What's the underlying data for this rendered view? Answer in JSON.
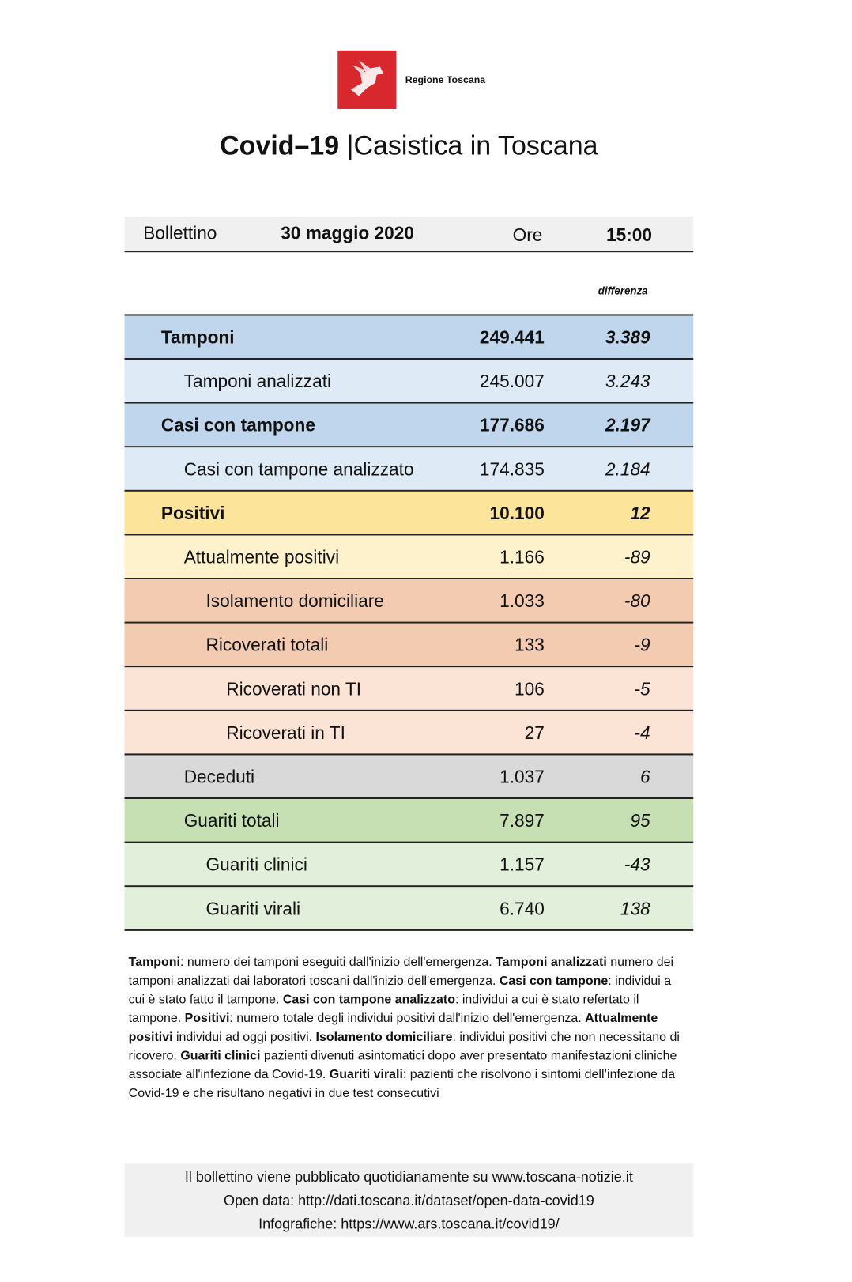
{
  "logo": {
    "text": "Regione Toscana"
  },
  "header": {
    "title_bold": "Covid–19",
    "separator": "|",
    "title": "Casistica in Toscana"
  },
  "bulletin": {
    "label": "Bollettino",
    "date": "30 maggio 2020",
    "time_label": "Ore",
    "time": "15:00"
  },
  "table": {
    "diff_header": "differenza",
    "rows": [
      [
        "Tamponi",
        "249.441",
        "3.389"
      ],
      [
        "Tamponi analizzati",
        "245.007",
        "3.243"
      ],
      [
        "Casi con tampone",
        "177.686",
        "2.197"
      ],
      [
        "Casi con tampone analizzato",
        "174.835",
        "2.184"
      ],
      [
        "Positivi",
        "10.100",
        "12"
      ],
      [
        "Attualmente positivi",
        "1.166",
        "-89"
      ],
      [
        "Isolamento domiciliare",
        "1.033",
        "-80"
      ],
      [
        "Ricoverati totali",
        "133",
        "-9"
      ],
      [
        "Ricoverati non TI",
        "106",
        "-5"
      ],
      [
        "Ricoverati in TI",
        "27",
        "-4"
      ],
      [
        "Deceduti",
        "1.037",
        "6"
      ],
      [
        "Guariti totali",
        "7.897",
        "95"
      ],
      [
        "Guariti clinici",
        "1.157",
        "-43"
      ],
      [
        "Guariti virali",
        "6.740",
        "138"
      ]
    ]
  },
  "notes": [
    [
      "Tamponi",
      ": numero dei tamponi eseguiti dall'inizio dell'emergenza. "
    ],
    [
      "Tamponi analizzati",
      " numero dei tamponi analizzati dai laboratori toscani dall'inizio dell'emergenza. "
    ],
    [
      "Casi con tampone",
      ": individui a cui è stato fatto il tampone. "
    ],
    [
      "Casi con tampone analizzato",
      ": individui a cui è stato refertato il tampone. "
    ],
    [
      "Positivi",
      ": numero totale degli individui positivi dall'inizio dell'emergenza. "
    ],
    [
      "Attualmente positivi",
      " individui ad oggi positivi. "
    ],
    [
      "Isolamento domiciliare",
      ": individui positivi che non necessitano di ricovero. "
    ],
    [
      "Guariti clinici",
      " pazienti divenuti asintomatici dopo aver presentato manifestazioni cliniche associate all'infezione da Covid-19.  "
    ],
    [
      "Guariti virali",
      ": pazienti che risolvono i sintomi dell’infezione da Covid-19 e che risultano negativi in due test consecutivi"
    ]
  ],
  "footer": [
    "Il bollettino viene pubblicato quotidianamente su www.toscana-notizie.it",
    "Open data: http://dati.toscana.it/dataset/open-data-covid19",
    "Infografiche: https://www.ars.toscana.it/covid19/"
  ]
}
